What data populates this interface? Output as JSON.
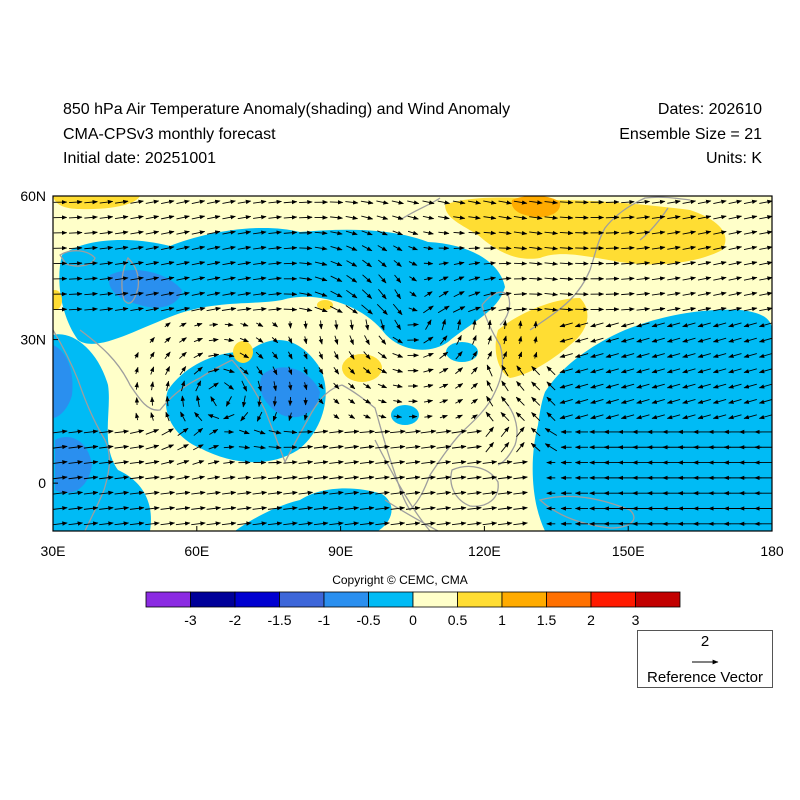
{
  "header": {
    "title": "850 hPa Air Temperature Anomaly(shading) and Wind Anomaly",
    "model": "CMA-CPSv3 monthly forecast",
    "initial_date": "Initial date: 20251001",
    "dates": "Dates: 202610",
    "ensemble": "Ensemble Size = 21",
    "units": "Units: K"
  },
  "axes": {
    "x_ticks": [
      "30E",
      "60E",
      "90E",
      "120E",
      "150E",
      "180"
    ],
    "x_values": [
      30,
      60,
      90,
      120,
      150,
      180
    ],
    "y_ticks": [
      "60N",
      "30N",
      "0"
    ],
    "y_values": [
      60,
      30,
      0
    ],
    "lon_range": [
      30,
      180
    ],
    "lat_range": [
      -10,
      60
    ]
  },
  "colorbar": {
    "labels": [
      "-3",
      "-2",
      "-1.5",
      "-1",
      "-0.5",
      "0",
      "0.5",
      "1",
      "1.5",
      "2",
      "3"
    ],
    "colors": [
      "#8b2be2",
      "#000099",
      "#0000d0",
      "#3d66d9",
      "#2a8fef",
      "#00bbf5",
      "#ffffc9",
      "#ffdd33",
      "#ffab00",
      "#ff7000",
      "#ff1a00",
      "#c20000"
    ]
  },
  "copyright": "Copyright © CEMC, CMA",
  "reference_vector": {
    "magnitude": "2",
    "label": "Reference Vector"
  },
  "colors": {
    "coast": "#9e9e9e",
    "arrow": "#000000",
    "frame": "#000000"
  }
}
